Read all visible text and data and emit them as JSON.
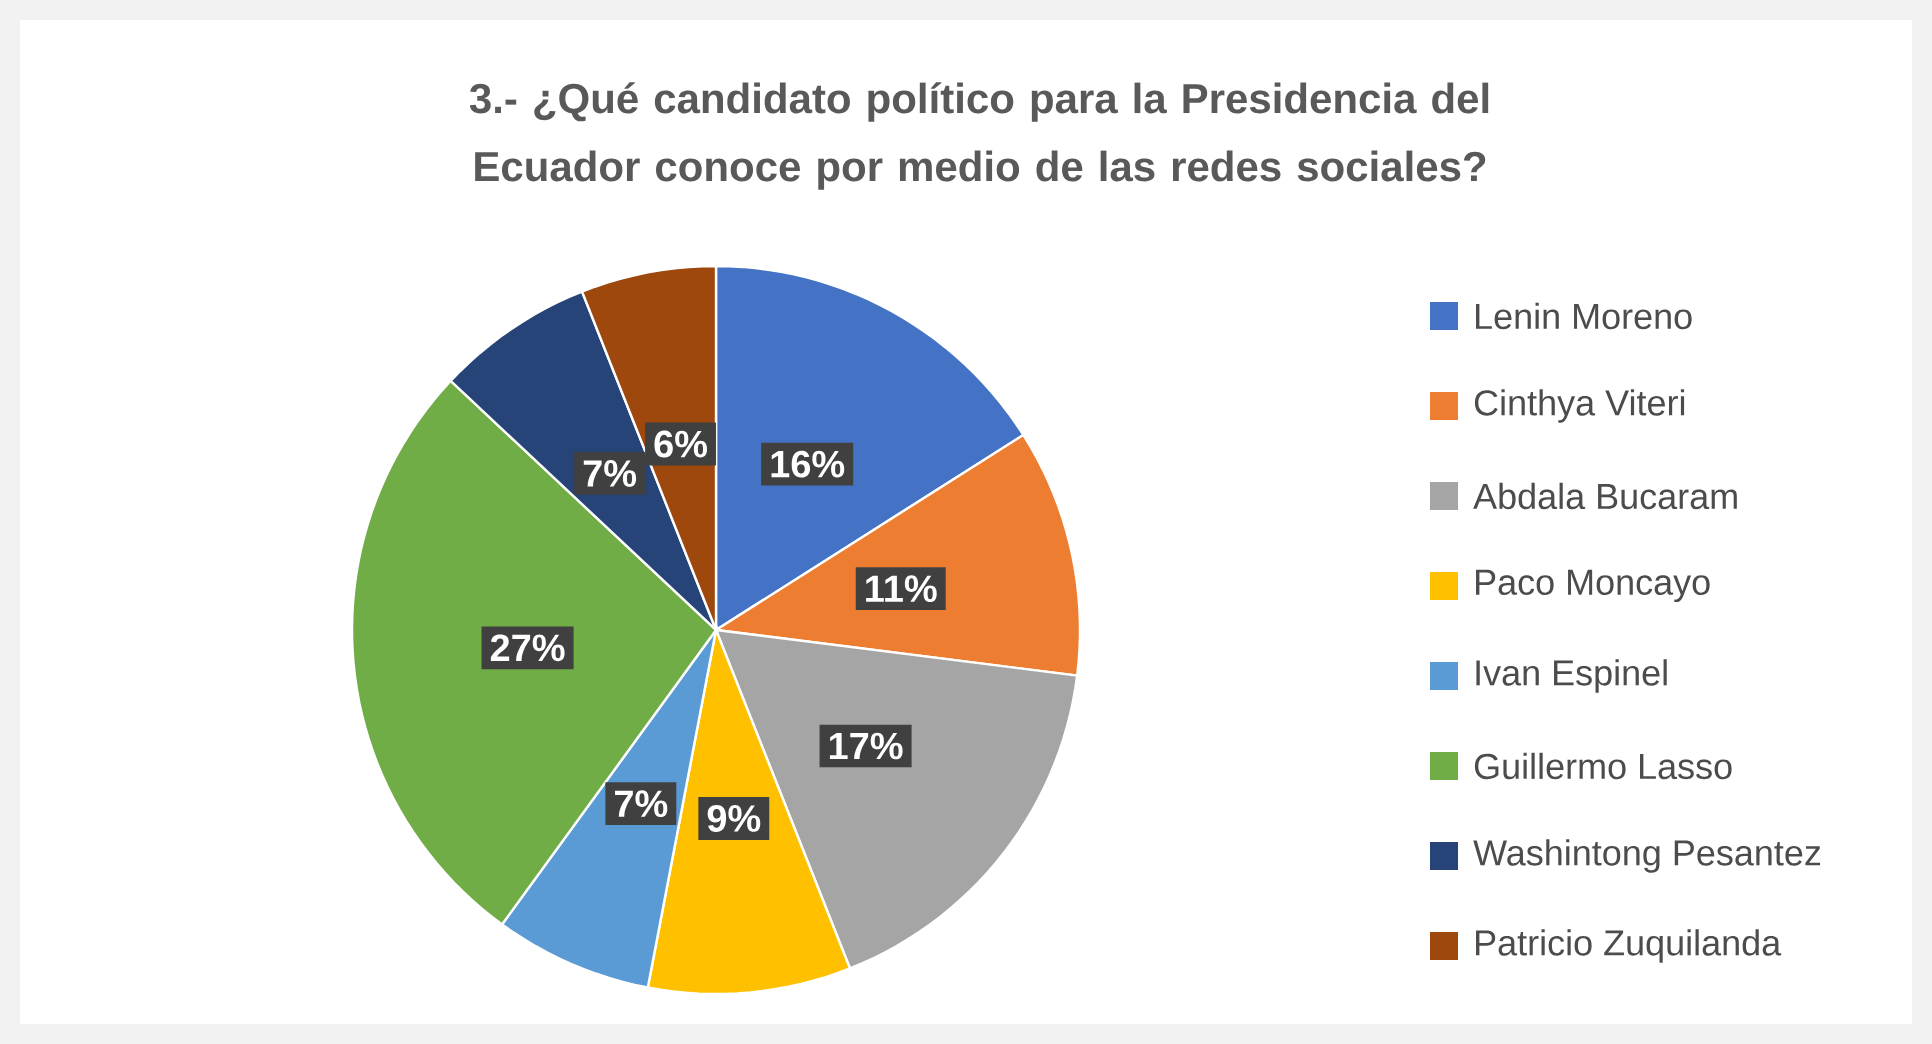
{
  "chart_data": {
    "type": "pie",
    "title": "3.- ¿Qué candidato político para la Presidencia del Ecuador conoce por medio de las redes sociales?",
    "categories": [
      "Lenin Moreno",
      "Cinthya Viteri",
      "Abdala Bucaram",
      "Paco Moncayo",
      "Ivan Espinel",
      "Guillermo Lasso",
      "Washintong Pesantez",
      "Patricio Zuquilanda"
    ],
    "values": [
      16,
      11,
      17,
      9,
      7,
      27,
      7,
      6
    ],
    "colors": [
      "#4472c4",
      "#ed7d31",
      "#a5a5a5",
      "#ffc000",
      "#5b9bd5",
      "#70ad47",
      "#264478",
      "#9e480e"
    ],
    "value_labels": [
      "16%",
      "11%",
      "17%",
      "9%",
      "7%",
      "27%",
      "7%",
      "6%"
    ],
    "legend": "right"
  }
}
